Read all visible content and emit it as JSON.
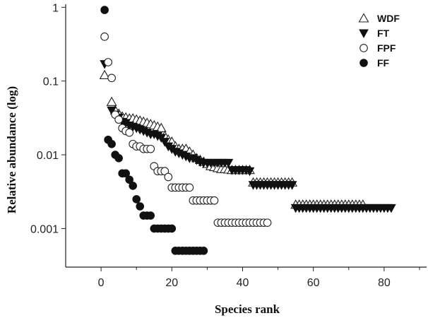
{
  "chart_data": {
    "type": "scatter",
    "title": "",
    "xlabel": "Species rank",
    "ylabel": "Relative abundance (log)",
    "xlim": [
      -10,
      92
    ],
    "ylim": [
      0.0003,
      1.1
    ],
    "yscale": "log",
    "xticks": [
      0,
      20,
      40,
      60,
      80
    ],
    "xtick_labels": [
      "0",
      "20",
      "40",
      "60",
      "80"
    ],
    "yticks": [
      1,
      0.1,
      0.01,
      0.001
    ],
    "ytick_labels": [
      "1",
      "0.1",
      "0.01",
      "0.001"
    ],
    "grid": false,
    "legend_position": "top-right",
    "series": [
      {
        "name": "WDF",
        "marker": "triangle-up-open",
        "color": "#222222",
        "x": [
          1,
          3,
          4,
          5,
          6,
          7,
          8,
          9,
          10,
          11,
          12,
          13,
          14,
          15,
          16,
          17,
          18,
          19,
          20,
          21,
          22,
          23,
          24,
          25,
          26,
          27,
          28,
          29,
          30,
          31,
          32,
          33,
          34,
          35,
          36,
          37,
          38,
          39,
          40,
          41,
          42,
          43,
          44,
          45,
          46,
          47,
          48,
          49,
          50,
          51,
          52,
          53,
          54,
          55,
          56,
          57,
          58,
          59,
          60,
          61,
          62,
          63,
          64,
          65,
          66,
          67,
          68,
          69,
          70,
          71,
          72,
          73,
          74
        ],
        "y": [
          0.12,
          0.052,
          0.04,
          0.036,
          0.033,
          0.032,
          0.031,
          0.031,
          0.03,
          0.029,
          0.028,
          0.027,
          0.026,
          0.025,
          0.024,
          0.023,
          0.018,
          0.016,
          0.015,
          0.013,
          0.012,
          0.012,
          0.012,
          0.011,
          0.01,
          0.009,
          0.0085,
          0.008,
          0.0075,
          0.007,
          0.0068,
          0.0066,
          0.0064,
          0.0064,
          0.0063,
          0.0062,
          0.0062,
          0.0062,
          0.0062,
          0.0062,
          0.0062,
          0.0042,
          0.0042,
          0.0042,
          0.0042,
          0.0042,
          0.0042,
          0.0042,
          0.0042,
          0.0042,
          0.0042,
          0.0042,
          0.0042,
          0.0021,
          0.0021,
          0.0021,
          0.0021,
          0.0021,
          0.0021,
          0.0021,
          0.0021,
          0.0021,
          0.0021,
          0.0021,
          0.0021,
          0.0021,
          0.0021,
          0.0021,
          0.0021,
          0.0021,
          0.0021,
          0.0021,
          0.0021
        ]
      },
      {
        "name": "FT",
        "marker": "triangle-down-filled",
        "color": "#111111",
        "x": [
          1,
          3,
          4,
          5,
          6,
          7,
          8,
          9,
          10,
          11,
          12,
          13,
          14,
          15,
          16,
          17,
          18,
          19,
          20,
          21,
          22,
          23,
          24,
          25,
          26,
          27,
          28,
          29,
          30,
          31,
          32,
          33,
          34,
          35,
          36,
          37,
          38,
          39,
          40,
          41,
          42,
          43,
          44,
          45,
          46,
          47,
          48,
          49,
          50,
          51,
          52,
          53,
          54,
          55,
          56,
          57,
          58,
          59,
          60,
          61,
          62,
          63,
          64,
          65,
          66,
          67,
          68,
          69,
          70,
          71,
          72,
          73,
          74,
          75,
          76,
          77,
          78,
          79,
          80,
          81,
          82
        ],
        "y": [
          0.17,
          0.04,
          0.035,
          0.032,
          0.028,
          0.027,
          0.025,
          0.024,
          0.023,
          0.022,
          0.021,
          0.02,
          0.019,
          0.019,
          0.018,
          0.017,
          0.015,
          0.013,
          0.012,
          0.011,
          0.0105,
          0.01,
          0.0095,
          0.009,
          0.009,
          0.0085,
          0.008,
          0.0078,
          0.0078,
          0.0078,
          0.0078,
          0.0078,
          0.0078,
          0.0078,
          0.0078,
          0.0062,
          0.0062,
          0.0062,
          0.0062,
          0.0062,
          0.006,
          0.0039,
          0.0039,
          0.0039,
          0.0039,
          0.0039,
          0.0039,
          0.0039,
          0.0039,
          0.0039,
          0.0039,
          0.0039,
          0.0039,
          0.0019,
          0.0019,
          0.0019,
          0.0019,
          0.0019,
          0.0019,
          0.0019,
          0.0019,
          0.0019,
          0.0019,
          0.0019,
          0.0019,
          0.0019,
          0.0019,
          0.0019,
          0.0019,
          0.0019,
          0.0019,
          0.0019,
          0.0019,
          0.0019,
          0.0019,
          0.0019,
          0.0019,
          0.0019,
          0.0019,
          0.0019,
          0.0019
        ]
      },
      {
        "name": "FPF",
        "marker": "circle-open",
        "color": "#222222",
        "x": [
          1,
          2,
          3,
          4,
          5,
          6,
          7,
          8,
          9,
          10,
          11,
          12,
          13,
          14,
          15,
          16,
          17,
          18,
          19,
          20,
          21,
          22,
          23,
          24,
          25,
          26,
          27,
          28,
          29,
          30,
          31,
          32,
          33,
          34,
          35,
          36,
          37,
          38,
          39,
          40,
          41,
          42,
          43,
          44,
          45,
          46,
          47
        ],
        "y": [
          0.4,
          0.18,
          0.11,
          0.035,
          0.03,
          0.023,
          0.021,
          0.02,
          0.014,
          0.013,
          0.013,
          0.012,
          0.012,
          0.012,
          0.007,
          0.006,
          0.006,
          0.006,
          0.005,
          0.0036,
          0.0036,
          0.0036,
          0.0036,
          0.0036,
          0.0036,
          0.0024,
          0.0024,
          0.0024,
          0.0024,
          0.0024,
          0.0024,
          0.0024,
          0.0012,
          0.0012,
          0.0012,
          0.0012,
          0.0012,
          0.0012,
          0.0012,
          0.0012,
          0.0012,
          0.0012,
          0.0012,
          0.0012,
          0.0012,
          0.0012,
          0.0012
        ]
      },
      {
        "name": "FF",
        "marker": "circle-filled",
        "color": "#111111",
        "x": [
          1,
          2,
          3,
          4,
          5,
          6,
          7,
          8,
          9,
          10,
          11,
          12,
          13,
          14,
          15,
          16,
          17,
          18,
          19,
          20,
          21,
          22,
          23,
          24,
          25,
          26,
          27,
          28,
          29
        ],
        "y": [
          0.92,
          0.016,
          0.014,
          0.01,
          0.009,
          0.0056,
          0.0056,
          0.0046,
          0.0038,
          0.0025,
          0.002,
          0.0015,
          0.0015,
          0.0015,
          0.001,
          0.001,
          0.001,
          0.001,
          0.001,
          0.001,
          0.0005,
          0.0005,
          0.0005,
          0.0005,
          0.0005,
          0.0005,
          0.0005,
          0.0005,
          0.0005
        ]
      }
    ]
  }
}
